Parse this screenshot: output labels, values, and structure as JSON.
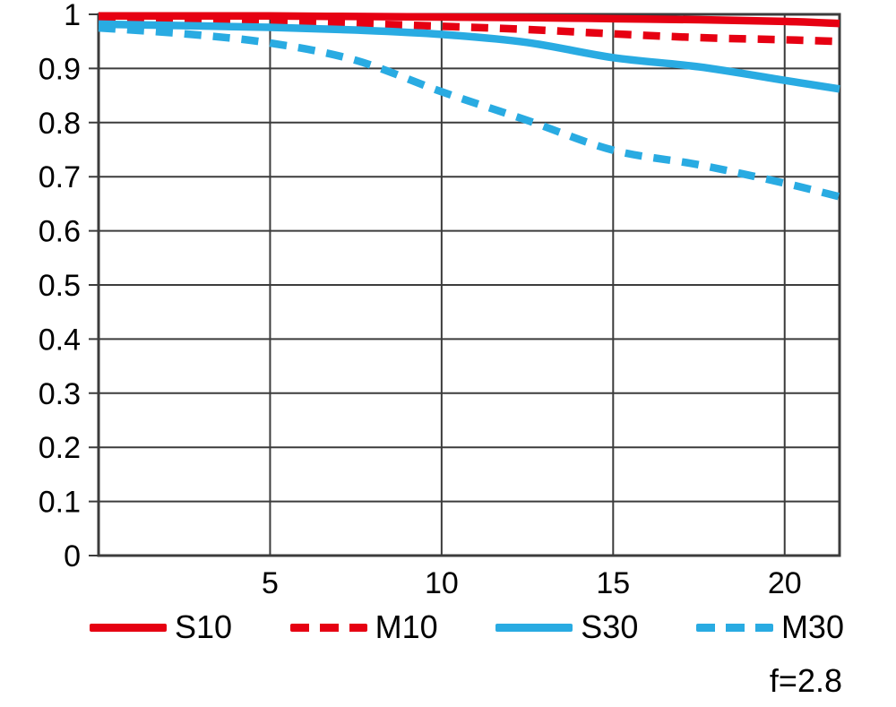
{
  "colors": {
    "red": "#e60012",
    "blue": "#29abe2",
    "grid": "#3c3c3c",
    "text": "#000000",
    "background": "#ffffff"
  },
  "legend": {
    "items": [
      {
        "label": "S10",
        "color": "#e60012",
        "style": "solid"
      },
      {
        "label": "M10",
        "color": "#e60012",
        "style": "dashed"
      },
      {
        "label": "S30",
        "color": "#29abe2",
        "style": "solid"
      },
      {
        "label": "M30",
        "color": "#29abe2",
        "style": "dashed"
      }
    ]
  },
  "chart_data": {
    "type": "line",
    "title": "",
    "xlabel": "",
    "ylabel": "",
    "xlim": [
      0,
      21.6
    ],
    "ylim": [
      0,
      1
    ],
    "x_ticks": [
      5,
      10,
      15,
      20
    ],
    "x_tick_labels": [
      "5",
      "10",
      "15",
      "20"
    ],
    "y_ticks": [
      0,
      0.1,
      0.2,
      0.3,
      0.4,
      0.5,
      0.6,
      0.7,
      0.8,
      0.9,
      1
    ],
    "y_tick_labels": [
      "0",
      "0.1",
      "0.2",
      "0.3",
      "0.4",
      "0.5",
      "0.6",
      "0.7",
      "0.8",
      "0.9",
      "1"
    ],
    "grid": true,
    "legend_position": "bottom",
    "annotation": "f=2.8",
    "x": [
      0,
      2.5,
      5,
      7.5,
      10,
      12.5,
      15,
      17.5,
      20,
      21.6
    ],
    "series": [
      {
        "name": "S10",
        "color": "#e60012",
        "line_style": "solid",
        "values": [
          0.997,
          0.997,
          0.997,
          0.996,
          0.995,
          0.994,
          0.992,
          0.99,
          0.987,
          0.983
        ]
      },
      {
        "name": "M10",
        "color": "#e60012",
        "line_style": "dashed",
        "values": [
          0.992,
          0.989,
          0.986,
          0.983,
          0.978,
          0.972,
          0.964,
          0.957,
          0.953,
          0.95
        ]
      },
      {
        "name": "S30",
        "color": "#29abe2",
        "line_style": "solid",
        "values": [
          0.982,
          0.979,
          0.976,
          0.971,
          0.963,
          0.948,
          0.92,
          0.903,
          0.878,
          0.862
        ]
      },
      {
        "name": "M30",
        "color": "#29abe2",
        "line_style": "dashed",
        "values": [
          0.975,
          0.964,
          0.947,
          0.915,
          0.857,
          0.804,
          0.749,
          0.722,
          0.688,
          0.663
        ]
      }
    ]
  }
}
